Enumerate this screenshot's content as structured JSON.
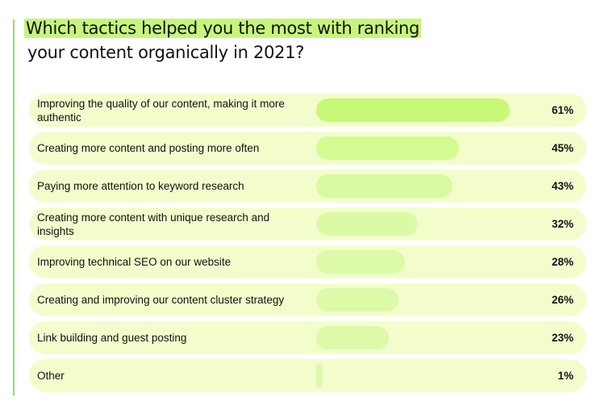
{
  "chart_data": {
    "type": "bar",
    "orientation": "horizontal",
    "title_line1": "Which tactics helped you the most with ranking",
    "title_line2": "your content organically in 2021?",
    "categories": [
      "Improving the quality of our content, making it more authentic",
      "Creating more content and posting more often",
      "Paying more attention to keyword research",
      "Creating more content with unique research and insights",
      "Improving technical SEO on our website",
      "Creating and improving our content cluster strategy",
      "Link building and guest posting",
      "Other"
    ],
    "values": [
      61,
      45,
      43,
      32,
      28,
      26,
      23,
      1
    ],
    "labels": [
      "61%",
      "45%",
      "43%",
      "32%",
      "28%",
      "26%",
      "23%",
      "1%"
    ],
    "unit": "%",
    "xlim": [
      0,
      100
    ],
    "grid": false,
    "legend": "none",
    "colors": {
      "accent": "#c6f57c",
      "row_background": "#f3fdcc",
      "bar_colors": [
        "#c8f878",
        "#d4fa92",
        "#d8faa0",
        "#dbfaa6",
        "#dcfaa8",
        "#dcfaa8",
        "#dcfaa8",
        "#dcfaa8"
      ]
    }
  }
}
